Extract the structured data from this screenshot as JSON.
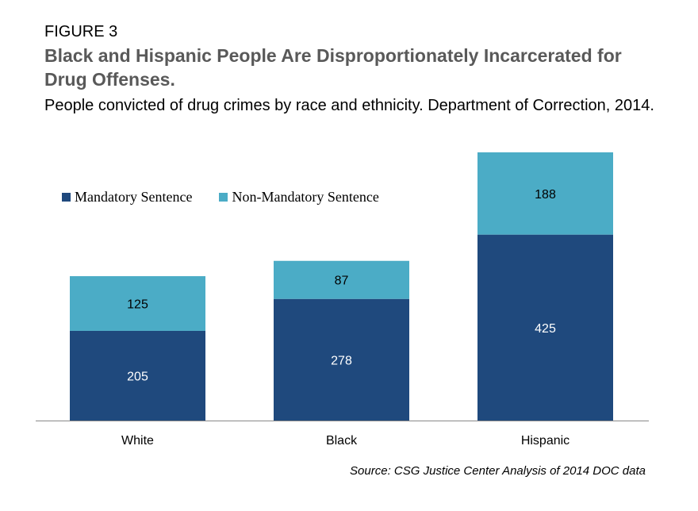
{
  "figure_label": "FIGURE 3",
  "source": "Source: CSG Justice Center Analysis of 2014 DOC data",
  "colors": {
    "mandatory": "#1f497d",
    "non_mandatory": "#4bacc6"
  },
  "chart_data": {
    "type": "bar",
    "stacked": true,
    "title": "Black and Hispanic People Are Disproportionately Incarcerated for Drug Offenses.",
    "subtitle": "People convicted of drug crimes by race and ethnicity. Department of Correction, 2014.",
    "categories": [
      "White",
      "Black",
      "Hispanic"
    ],
    "series": [
      {
        "name": "Mandatory Sentence",
        "values": [
          205,
          278,
          425
        ]
      },
      {
        "name": "Non-Mandatory Sentence",
        "values": [
          125,
          87,
          188
        ]
      }
    ],
    "ylim": [
      0,
      613
    ],
    "grid": false,
    "legend": "top-left"
  }
}
